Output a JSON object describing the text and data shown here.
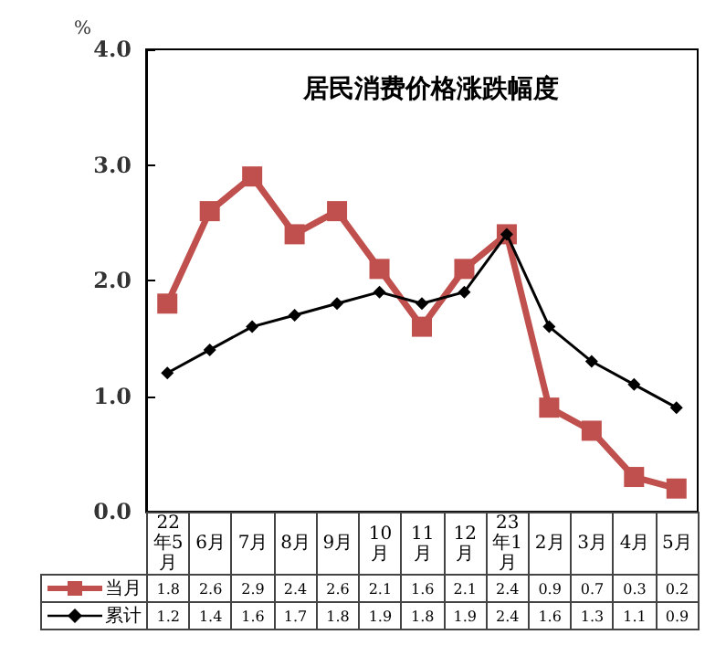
{
  "chart_data": {
    "type": "line",
    "title": "居民消费价格涨跌幅度",
    "ylabel": "%",
    "categories": [
      "22年5月",
      "6月",
      "7月",
      "8月",
      "9月",
      "10月",
      "11月",
      "12月",
      "23年1月",
      "2月",
      "3月",
      "4月",
      "5月"
    ],
    "series": [
      {
        "name": "当月",
        "color": "#c0504d",
        "marker": "square",
        "values": [
          1.8,
          2.6,
          2.9,
          2.4,
          2.6,
          2.1,
          1.6,
          2.1,
          2.4,
          0.9,
          0.7,
          0.3,
          0.2
        ]
      },
      {
        "name": "累计",
        "color": "#000000",
        "marker": "diamond",
        "values": [
          1.2,
          1.4,
          1.6,
          1.7,
          1.8,
          1.9,
          1.8,
          1.9,
          2.4,
          1.6,
          1.3,
          1.1,
          0.9
        ]
      }
    ],
    "ylim": [
      0,
      4
    ],
    "yticks": [
      {
        "value": 0,
        "label": "0.0"
      },
      {
        "value": 1,
        "label": "1.0"
      },
      {
        "value": 2,
        "label": "2.0"
      },
      {
        "value": 3,
        "label": "3.0"
      },
      {
        "value": 4,
        "label": "4.0"
      }
    ],
    "grid": false,
    "legend": "bottom",
    "data_labels": true,
    "line_style": "solid"
  }
}
